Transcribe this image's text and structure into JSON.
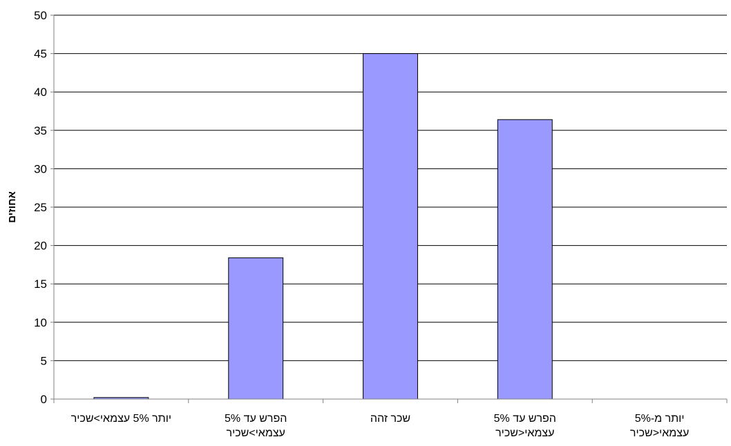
{
  "chart_data": {
    "type": "bar",
    "title": "",
    "xlabel": "",
    "ylabel": "אחוזים",
    "ylim": [
      0,
      50
    ],
    "yticks": [
      0,
      5,
      10,
      15,
      20,
      25,
      30,
      35,
      40,
      45,
      50
    ],
    "grid": true,
    "legend": "none",
    "categories": [
      [
        "יותר  5% עצמאי>שכיר"
      ],
      [
        "הפרש עד 5%",
        "עצמאי>שכיר"
      ],
      [
        "שכר זהה"
      ],
      [
        "הפרש עד 5%",
        "עצמאי<שכיר"
      ],
      [
        "יותר מ-5%",
        "עצמאי<שכיר"
      ]
    ],
    "values": [
      0.2,
      18.4,
      45.0,
      36.4,
      0
    ],
    "colors": {
      "bar_fill": "#9999ff",
      "bar_stroke": "#000000",
      "grid": "#000000",
      "axis": "#808080"
    }
  }
}
